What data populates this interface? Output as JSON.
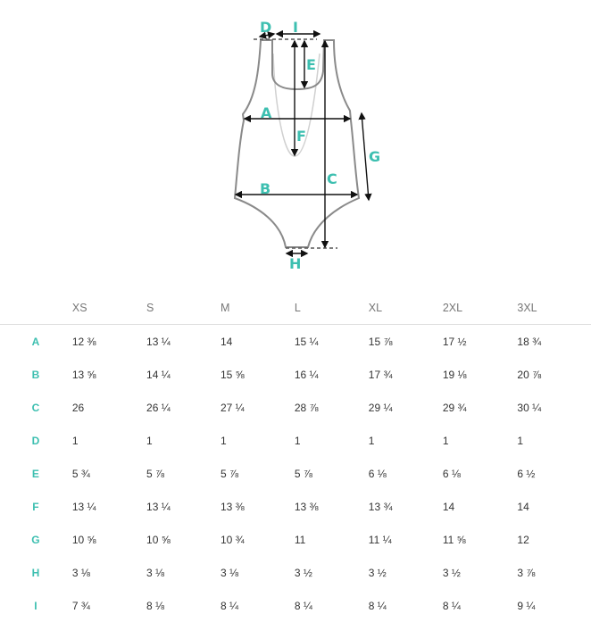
{
  "diagram": {
    "labels": {
      "A": "A",
      "B": "B",
      "C": "C",
      "D": "D",
      "E": "E",
      "F": "F",
      "G": "G",
      "H": "H",
      "I": "I"
    },
    "accent_color": "#3dbfb0"
  },
  "table": {
    "sizes": [
      "XS",
      "S",
      "M",
      "L",
      "XL",
      "2XL",
      "3XL"
    ],
    "rows": [
      {
        "label": "A",
        "values": [
          "12 ⅜",
          "13 ¼",
          "14",
          "15 ¼",
          "15 ⅞",
          "17 ½",
          "18 ¾"
        ]
      },
      {
        "label": "B",
        "values": [
          "13 ⅝",
          "14 ¼",
          "15 ⅝",
          "16 ¼",
          "17 ¾",
          "19 ⅛",
          "20 ⅞"
        ]
      },
      {
        "label": "C",
        "values": [
          "26",
          "26 ¼",
          "27 ¼",
          "28 ⅞",
          "29 ¼",
          "29 ¾",
          "30 ¼"
        ]
      },
      {
        "label": "D",
        "values": [
          "1",
          "1",
          "1",
          "1",
          "1",
          "1",
          "1"
        ]
      },
      {
        "label": "E",
        "values": [
          "5 ¾",
          "5 ⅞",
          "5 ⅞",
          "5 ⅞",
          "6 ⅛",
          "6 ⅛",
          "6 ½"
        ]
      },
      {
        "label": "F",
        "values": [
          "13 ¼",
          "13 ¼",
          "13 ⅜",
          "13 ⅜",
          "13 ¾",
          "14",
          "14"
        ]
      },
      {
        "label": "G",
        "values": [
          "10 ⅝",
          "10 ⅝",
          "10 ¾",
          "11",
          "11 ¼",
          "11 ⅝",
          "12"
        ]
      },
      {
        "label": "H",
        "values": [
          "3 ⅛",
          "3 ⅛",
          "3 ⅛",
          "3 ½",
          "3 ½",
          "3 ½",
          "3 ⅞"
        ]
      },
      {
        "label": "I",
        "values": [
          "7 ¾",
          "8 ⅛",
          "8 ¼",
          "8 ¼",
          "8 ¼",
          "8 ¼",
          "9 ¼"
        ]
      }
    ]
  }
}
